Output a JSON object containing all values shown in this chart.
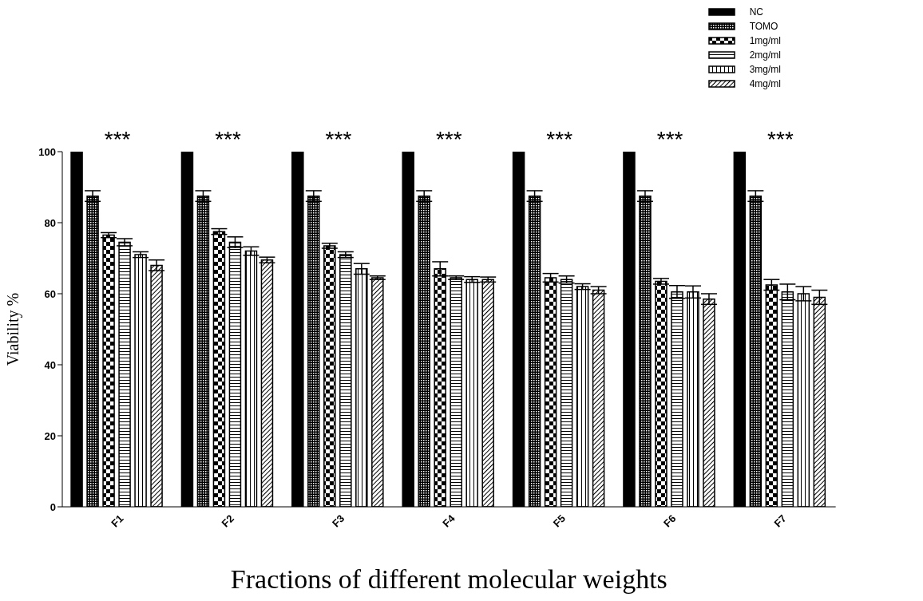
{
  "chart_data": {
    "type": "bar",
    "xlabel": "Fractions of different molecular weights",
    "ylabel": "Viability %",
    "categories": [
      "F1",
      "F2",
      "F3",
      "F4",
      "F5",
      "F6",
      "F7"
    ],
    "series": [
      {
        "name": "NC",
        "color": "#000000",
        "values": [
          100,
          100,
          100,
          100,
          100,
          100,
          100
        ]
      },
      {
        "name": "TOMO",
        "color": "#000000",
        "values": [
          87.5,
          87.5,
          87.5,
          87.5,
          87.5,
          87.5,
          87.5
        ],
        "errors": [
          1.5,
          1.5,
          1.5,
          1.5,
          1.5,
          1.5,
          1.5
        ]
      },
      {
        "name": "1mg/ml",
        "color": "#000000",
        "values": [
          76.5,
          77.5,
          73.5,
          67,
          64.5,
          63.5,
          62.5
        ],
        "errors": [
          0.7,
          0.8,
          0.7,
          2,
          1.2,
          0.8,
          1.5
        ]
      },
      {
        "name": "2mg/ml",
        "color": "#000000",
        "values": [
          74.5,
          74.5,
          71,
          64.5,
          64,
          60.5,
          60.5
        ],
        "errors": [
          1,
          1.5,
          0.8,
          0.5,
          1,
          1.8,
          2.2
        ]
      },
      {
        "name": "3mg/ml",
        "color": "#000000",
        "values": [
          71,
          72,
          67,
          64,
          62,
          60.5,
          60
        ],
        "errors": [
          0.8,
          1.2,
          1.5,
          0.8,
          0.8,
          1.7,
          2
        ]
      },
      {
        "name": "4mg/ml",
        "color": "#000000",
        "values": [
          68,
          69.5,
          64.5,
          64,
          61,
          58.5,
          59
        ],
        "errors": [
          1.5,
          0.8,
          0.5,
          0.7,
          1,
          1.5,
          2
        ]
      }
    ],
    "annotations": [
      "***",
      "***",
      "***",
      "***",
      "***",
      "***",
      "***"
    ],
    "ylim": [
      0,
      100
    ],
    "yticks": [
      0,
      20,
      40,
      60,
      80,
      100
    ],
    "grid": false,
    "legend": "top right"
  }
}
